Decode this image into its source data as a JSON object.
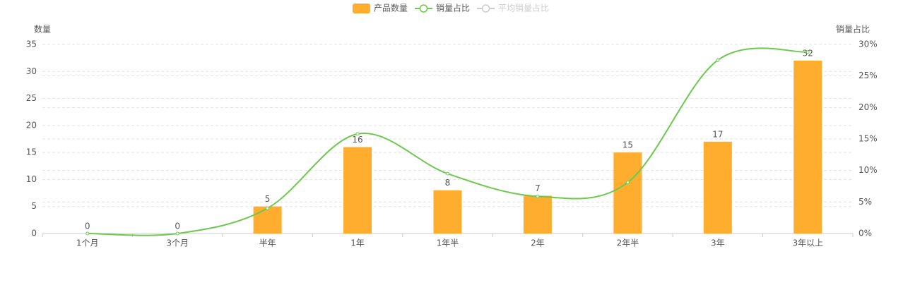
{
  "chart_data": {
    "type": "bar-line",
    "y_label": "数量",
    "y2_label": "销量占比",
    "categories": [
      "1个月",
      "3个月",
      "半年",
      "1年",
      "1年半",
      "2年",
      "2年半",
      "3年",
      "3年以上"
    ],
    "series": [
      {
        "name": "产品数量",
        "type": "bar",
        "color": "#ffad2f",
        "values": [
          0,
          0,
          5,
          16,
          8,
          7,
          15,
          17,
          32
        ]
      },
      {
        "name": "销量占比",
        "type": "line",
        "axis": "y2",
        "color": "#6cc94e",
        "values": [
          0,
          0,
          4.0,
          15.8,
          9.5,
          5.9,
          8.1,
          27.5,
          28.8
        ]
      },
      {
        "name": "平均销量占比",
        "type": "line",
        "axis": "y2",
        "color": "#cccccc",
        "hidden": true
      }
    ],
    "ylim": [
      0,
      35
    ],
    "yticks": [
      0,
      5,
      10,
      15,
      20,
      25,
      30,
      35
    ],
    "y2lim": [
      0,
      30
    ],
    "y2ticks": [
      {
        "value": 0,
        "label": "0%"
      },
      {
        "value": 5,
        "label": "5%"
      },
      {
        "value": 10,
        "label": "10%"
      },
      {
        "value": 15,
        "label": "15%"
      },
      {
        "value": 20,
        "label": "20%"
      },
      {
        "value": 25,
        "label": "25%"
      },
      {
        "value": 30,
        "label": "30%"
      }
    ],
    "grid": true,
    "legend": "top"
  }
}
